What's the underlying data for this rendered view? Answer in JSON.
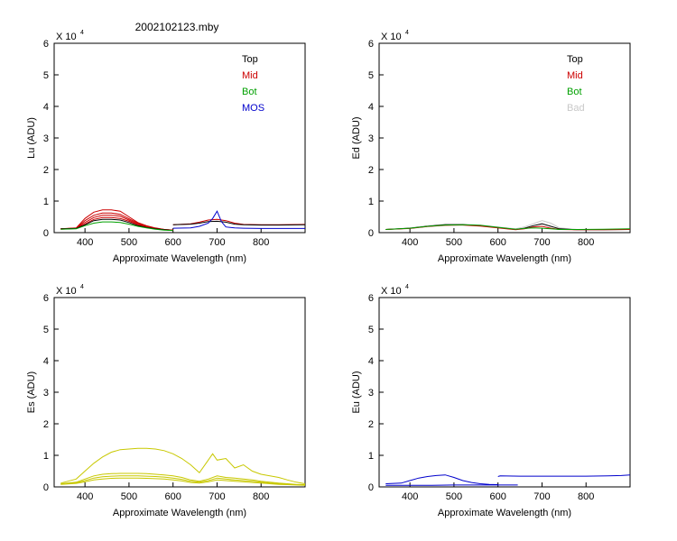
{
  "figure_title": "2002102123.mby",
  "chart_data": [
    {
      "type": "line",
      "ylabel": "Lu (ADU)",
      "xlabel": "Approximate Wavelength (nm)",
      "y_multiplier": "X 10",
      "y_exponent": "4",
      "xlim": [
        330,
        900
      ],
      "ylim": [
        0,
        6
      ],
      "x_ticks": [
        400,
        500,
        600,
        700,
        800
      ],
      "y_ticks": [
        0,
        1,
        2,
        3,
        4,
        5,
        6
      ],
      "legend": [
        {
          "label": "Top",
          "color": "#000000"
        },
        {
          "label": "Mid",
          "color": "#cc0000"
        },
        {
          "label": "Bot",
          "color": "#00a000"
        },
        {
          "label": "MOS",
          "color": "#0000cc"
        }
      ],
      "series": [
        {
          "group": "Mid",
          "color": "#cc0000",
          "x": [
            345,
            380,
            400,
            420,
            440,
            460,
            480,
            500,
            520,
            540,
            560,
            580,
            600
          ],
          "y": [
            0.12,
            0.15,
            0.45,
            0.65,
            0.72,
            0.72,
            0.68,
            0.5,
            0.32,
            0.22,
            0.15,
            0.1,
            0.08
          ]
        },
        {
          "group": "Mid",
          "color": "#cc0000",
          "x": [
            345,
            380,
            400,
            420,
            440,
            460,
            480,
            500,
            520,
            540,
            560,
            580,
            600
          ],
          "y": [
            0.12,
            0.14,
            0.38,
            0.55,
            0.62,
            0.62,
            0.58,
            0.44,
            0.3,
            0.2,
            0.14,
            0.1,
            0.08
          ]
        },
        {
          "group": "Mid",
          "color": "#cc0000",
          "x": [
            345,
            380,
            400,
            420,
            440,
            460,
            480,
            500,
            520,
            540,
            560,
            580,
            600
          ],
          "y": [
            0.12,
            0.14,
            0.32,
            0.48,
            0.55,
            0.55,
            0.52,
            0.4,
            0.27,
            0.19,
            0.13,
            0.1,
            0.08
          ]
        },
        {
          "group": "Mid",
          "color": "#cc0000",
          "x": [
            345,
            380,
            400,
            420,
            440,
            460,
            480,
            500,
            520,
            540,
            560,
            580,
            600
          ],
          "y": [
            0.11,
            0.13,
            0.27,
            0.42,
            0.48,
            0.48,
            0.45,
            0.36,
            0.25,
            0.18,
            0.12,
            0.09,
            0.07
          ]
        },
        {
          "group": "Mid",
          "color": "#cc0000",
          "x": [
            600,
            640,
            660,
            680,
            700,
            720,
            740,
            760,
            800,
            840,
            900
          ],
          "y": [
            0.25,
            0.28,
            0.33,
            0.4,
            0.42,
            0.38,
            0.3,
            0.26,
            0.25,
            0.25,
            0.26
          ]
        },
        {
          "group": "Top",
          "color": "#000000",
          "x": [
            345,
            380,
            400,
            420,
            440,
            460,
            480,
            500,
            520,
            540,
            560,
            580,
            600
          ],
          "y": [
            0.12,
            0.13,
            0.25,
            0.38,
            0.42,
            0.42,
            0.4,
            0.32,
            0.22,
            0.16,
            0.12,
            0.09,
            0.07
          ]
        },
        {
          "group": "Top",
          "color": "#000000",
          "x": [
            600,
            640,
            660,
            680,
            700,
            720,
            740,
            760,
            800,
            840,
            900
          ],
          "y": [
            0.25,
            0.27,
            0.3,
            0.35,
            0.36,
            0.33,
            0.27,
            0.25,
            0.24,
            0.24,
            0.25
          ]
        },
        {
          "group": "Bot",
          "color": "#00a000",
          "x": [
            345,
            380,
            400,
            420,
            440,
            460,
            480,
            500,
            520,
            540,
            560,
            580,
            600
          ],
          "y": [
            0.11,
            0.12,
            0.22,
            0.3,
            0.34,
            0.34,
            0.32,
            0.27,
            0.2,
            0.15,
            0.11,
            0.08,
            0.07
          ]
        },
        {
          "group": "MOS",
          "color": "#0000cc",
          "x": [
            600,
            640,
            660,
            680,
            690,
            700,
            710,
            720,
            740,
            760,
            800,
            900
          ],
          "y": [
            0.14,
            0.15,
            0.2,
            0.3,
            0.45,
            0.68,
            0.35,
            0.18,
            0.15,
            0.14,
            0.13,
            0.13
          ]
        }
      ]
    },
    {
      "type": "line",
      "ylabel": "Ed  (ADU)",
      "xlabel": "Approximate Wavelength (nm)",
      "y_multiplier": "X 10",
      "y_exponent": "4",
      "xlim": [
        330,
        900
      ],
      "ylim": [
        0,
        6
      ],
      "x_ticks": [
        400,
        500,
        600,
        700,
        800
      ],
      "y_ticks": [
        0,
        1,
        2,
        3,
        4,
        5,
        6
      ],
      "legend": [
        {
          "label": "Top",
          "color": "#000000"
        },
        {
          "label": "Mid",
          "color": "#cc0000"
        },
        {
          "label": "Bot",
          "color": "#00a000"
        },
        {
          "label": "Bad",
          "color": "#c8c8c8"
        }
      ],
      "series": [
        {
          "group": "Bad",
          "color": "#c8c8c8",
          "x": [
            345,
            400,
            440,
            480,
            520,
            560,
            600,
            640,
            660,
            680,
            700,
            720,
            740,
            780,
            840,
            900
          ],
          "y": [
            0.1,
            0.15,
            0.22,
            0.27,
            0.27,
            0.24,
            0.18,
            0.12,
            0.18,
            0.28,
            0.38,
            0.3,
            0.15,
            0.1,
            0.1,
            0.1
          ]
        },
        {
          "group": "Top",
          "color": "#000000",
          "x": [
            345,
            400,
            440,
            480,
            520,
            560,
            600,
            640,
            660,
            680,
            700,
            720,
            740,
            780,
            840,
            900
          ],
          "y": [
            0.1,
            0.14,
            0.2,
            0.25,
            0.25,
            0.22,
            0.16,
            0.1,
            0.14,
            0.22,
            0.28,
            0.2,
            0.12,
            0.09,
            0.09,
            0.1
          ]
        },
        {
          "group": "Mid",
          "color": "#cc0000",
          "x": [
            345,
            400,
            440,
            480,
            520,
            560,
            600,
            640,
            660,
            680,
            700,
            720,
            740,
            780,
            840,
            900
          ],
          "y": [
            0.1,
            0.13,
            0.19,
            0.23,
            0.24,
            0.21,
            0.15,
            0.09,
            0.12,
            0.18,
            0.2,
            0.14,
            0.1,
            0.09,
            0.09,
            0.1
          ]
        },
        {
          "group": "Bot",
          "color": "#00a000",
          "x": [
            345,
            400,
            440,
            480,
            520,
            560,
            600,
            640,
            660,
            680,
            700,
            720,
            740,
            780,
            840,
            900
          ],
          "y": [
            0.1,
            0.14,
            0.2,
            0.24,
            0.25,
            0.23,
            0.17,
            0.11,
            0.13,
            0.15,
            0.14,
            0.12,
            0.1,
            0.1,
            0.11,
            0.12
          ]
        }
      ]
    },
    {
      "type": "line",
      "ylabel": "Es  (ADU)",
      "xlabel": "Approximate Wavelength (nm)",
      "y_multiplier": "X 10",
      "y_exponent": "4",
      "xlim": [
        330,
        900
      ],
      "ylim": [
        0,
        6
      ],
      "x_ticks": [
        400,
        500,
        600,
        700,
        800
      ],
      "y_ticks": [
        0,
        1,
        2,
        3,
        4,
        5,
        6
      ],
      "legend": [],
      "series": [
        {
          "group": "",
          "color": "#c8c800",
          "x": [
            345,
            380,
            400,
            420,
            440,
            460,
            480,
            500,
            520,
            540,
            560,
            580,
            600,
            620,
            640,
            660,
            680,
            690,
            700,
            720,
            740,
            760,
            780,
            800,
            820,
            840,
            860,
            880,
            900
          ],
          "y": [
            0.12,
            0.25,
            0.5,
            0.75,
            0.95,
            1.1,
            1.18,
            1.2,
            1.22,
            1.22,
            1.2,
            1.15,
            1.05,
            0.9,
            0.7,
            0.45,
            0.85,
            1.05,
            0.85,
            0.9,
            0.6,
            0.7,
            0.5,
            0.4,
            0.35,
            0.3,
            0.22,
            0.15,
            0.1
          ]
        },
        {
          "group": "",
          "color": "#c8c800",
          "x": [
            345,
            380,
            400,
            420,
            440,
            460,
            480,
            500,
            520,
            540,
            560,
            580,
            600,
            620,
            640,
            660,
            680,
            700,
            720,
            740,
            760,
            780,
            800,
            820,
            840,
            860,
            880,
            900
          ],
          "y": [
            0.1,
            0.15,
            0.25,
            0.35,
            0.4,
            0.42,
            0.43,
            0.43,
            0.43,
            0.42,
            0.4,
            0.38,
            0.35,
            0.3,
            0.22,
            0.18,
            0.25,
            0.35,
            0.3,
            0.28,
            0.25,
            0.22,
            0.18,
            0.15,
            0.12,
            0.1,
            0.08,
            0.07
          ]
        },
        {
          "group": "",
          "color": "#c8c800",
          "x": [
            345,
            380,
            400,
            420,
            440,
            460,
            480,
            500,
            520,
            540,
            560,
            580,
            600,
            620,
            640,
            660,
            680,
            700,
            720,
            740,
            760,
            780,
            800,
            820,
            840,
            860,
            880,
            900
          ],
          "y": [
            0.09,
            0.13,
            0.2,
            0.28,
            0.32,
            0.34,
            0.35,
            0.35,
            0.35,
            0.34,
            0.33,
            0.31,
            0.28,
            0.24,
            0.18,
            0.15,
            0.2,
            0.28,
            0.25,
            0.22,
            0.2,
            0.18,
            0.15,
            0.12,
            0.1,
            0.08,
            0.07,
            0.06
          ]
        },
        {
          "group": "",
          "color": "#c8c800",
          "x": [
            345,
            380,
            400,
            420,
            440,
            460,
            480,
            500,
            520,
            540,
            560,
            580,
            600,
            620,
            640,
            660,
            680,
            700,
            720,
            740,
            760,
            780,
            800,
            820,
            840,
            860,
            880,
            900
          ],
          "y": [
            0.08,
            0.11,
            0.16,
            0.22,
            0.25,
            0.27,
            0.28,
            0.28,
            0.28,
            0.27,
            0.26,
            0.25,
            0.22,
            0.19,
            0.14,
            0.12,
            0.16,
            0.22,
            0.2,
            0.18,
            0.16,
            0.14,
            0.12,
            0.1,
            0.08,
            0.07,
            0.06,
            0.05
          ]
        }
      ]
    },
    {
      "type": "line",
      "ylabel": "Eu  (ADU)",
      "xlabel": "Approximate Wavelength (nm)",
      "y_multiplier": "X 10",
      "y_exponent": "4",
      "xlim": [
        330,
        900
      ],
      "ylim": [
        0,
        6
      ],
      "x_ticks": [
        400,
        500,
        600,
        700,
        800
      ],
      "y_ticks": [
        0,
        1,
        2,
        3,
        4,
        5,
        6
      ],
      "legend": [],
      "series": [
        {
          "group": "",
          "color": "#0000cc",
          "x": [
            345,
            380,
            400,
            420,
            440,
            460,
            480,
            500,
            520,
            540,
            560,
            580,
            600
          ],
          "y": [
            0.1,
            0.12,
            0.2,
            0.28,
            0.33,
            0.36,
            0.38,
            0.3,
            0.2,
            0.14,
            0.1,
            0.08,
            0.07
          ]
        },
        {
          "group": "",
          "color": "#0000cc",
          "x": [
            345,
            400,
            450,
            500,
            550,
            600,
            645
          ],
          "y": [
            0.05,
            0.05,
            0.05,
            0.06,
            0.06,
            0.06,
            0.06
          ]
        },
        {
          "group": "",
          "color": "#0000cc",
          "x": [
            600,
            605,
            650,
            700,
            750,
            800,
            850,
            880,
            900
          ],
          "y": [
            0.33,
            0.35,
            0.34,
            0.34,
            0.34,
            0.34,
            0.35,
            0.36,
            0.38
          ]
        }
      ]
    }
  ]
}
